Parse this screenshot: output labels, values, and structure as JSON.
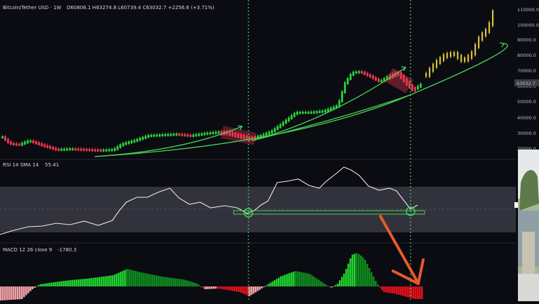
{
  "header": {
    "symbol": "Bitcoin/Tether USD · 1W",
    "ohlc": "O60806.1 H63274.8 L60739.4 C63032.7 +2256.6 (+3.71%)"
  },
  "price_axis": {
    "ticks": [
      "110000.0",
      "100000.0",
      "90000.0",
      "80000.0",
      "70000.0",
      "60000.0",
      "50000.0",
      "40000.0",
      "30000.0",
      "20000.0"
    ],
    "current_price": "63032.7"
  },
  "rsi": {
    "label": "RSI 14 SMA 14",
    "value": "55.41"
  },
  "macd": {
    "label": "MACD 12 26 close 9",
    "value": "-1780.3"
  },
  "colors": {
    "background": "#0b0b12",
    "up": "#26c33a",
    "down": "#e0364d",
    "projection": "#d6c23b",
    "trend": "#46d35a",
    "rsi_line": "#e8e8ec",
    "rsi_band": "#3a3a44",
    "arrow": "#e65a2a"
  }
}
